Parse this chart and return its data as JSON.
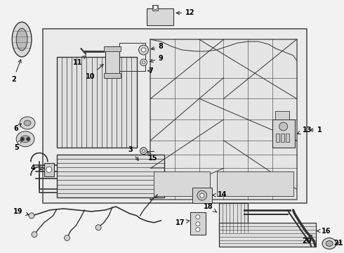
{
  "bg": "#f2f2f2",
  "box_bg": "#e8e8e8",
  "lc": "#333333",
  "white": "#ffffff",
  "fig_w": 4.9,
  "fig_h": 3.6,
  "dpi": 100
}
